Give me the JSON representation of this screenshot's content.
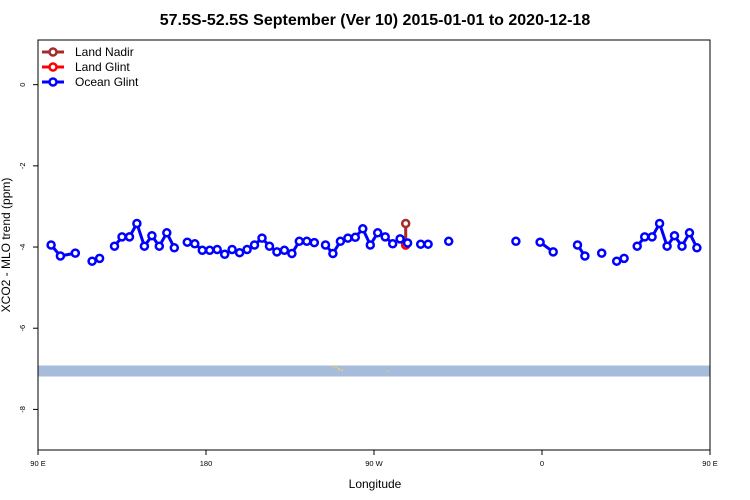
{
  "chart_data": {
    "type": "line",
    "title": "57.5S-52.5S September (Ver 10)   2015-01-01 to 2020-12-18",
    "xlabel": "Longitude",
    "ylabel": "XCO2 - MLO trend (ppm)",
    "xlim": [
      90,
      450
    ],
    "ylim": [
      -9,
      1.1
    ],
    "x_ticks": [
      {
        "value": 90,
        "label": "90 E"
      },
      {
        "value": 180,
        "label": "180"
      },
      {
        "value": 270,
        "label": "90 W"
      },
      {
        "value": 360,
        "label": "0"
      },
      {
        "value": 450,
        "label": "90 E"
      },
      {
        "value": 540,
        "label": "180"
      }
    ],
    "y_ticks": [
      {
        "value": 0,
        "label": "0"
      },
      {
        "value": -2,
        "label": "-2"
      },
      {
        "value": -4,
        "label": "-4"
      },
      {
        "value": -6,
        "label": "-6"
      },
      {
        "value": -8,
        "label": "-8"
      }
    ],
    "grid": false,
    "legend_position": "top-left",
    "series": [
      {
        "name": "Land Nadir",
        "color": "#a52a2a",
        "segments": [
          [
            [
              287,
              -3.42
            ],
            [
              287,
              -3.95
            ]
          ]
        ]
      },
      {
        "name": "Land Glint",
        "color": "#ff0000",
        "segments": [
          [
            [
              287,
              -3.95
            ]
          ]
        ]
      },
      {
        "name": "Ocean Glint",
        "color": "#0000ff",
        "segments": [
          [
            [
              97,
              -3.95
            ],
            [
              102,
              -4.22
            ],
            [
              110,
              -4.15
            ]
          ],
          [
            [
              119,
              -4.35
            ],
            [
              123,
              -4.28
            ]
          ],
          [
            [
              131,
              -3.98
            ],
            [
              135,
              -3.75
            ],
            [
              139,
              -3.75
            ],
            [
              143,
              -3.42
            ],
            [
              147,
              -3.98
            ],
            [
              151,
              -3.72
            ],
            [
              155,
              -3.98
            ],
            [
              159,
              -3.65
            ],
            [
              163,
              -4.02
            ]
          ],
          [
            [
              170,
              -3.88
            ],
            [
              174,
              -3.92
            ],
            [
              178,
              -4.08
            ],
            [
              182,
              -4.08
            ],
            [
              186,
              -4.06
            ],
            [
              190,
              -4.18
            ],
            [
              194,
              -4.06
            ],
            [
              198,
              -4.14
            ],
            [
              202,
              -4.06
            ],
            [
              206,
              -3.95
            ],
            [
              210,
              -3.78
            ],
            [
              214,
              -3.98
            ],
            [
              218,
              -4.12
            ],
            [
              222,
              -4.08
            ],
            [
              226,
              -4.16
            ],
            [
              230,
              -3.86
            ],
            [
              234,
              -3.86
            ],
            [
              238,
              -3.89
            ]
          ],
          [
            [
              244,
              -3.95
            ],
            [
              248,
              -4.16
            ],
            [
              252,
              -3.86
            ],
            [
              256,
              -3.78
            ],
            [
              260,
              -3.76
            ],
            [
              264,
              -3.55
            ],
            [
              268,
              -3.95
            ],
            [
              272,
              -3.65
            ],
            [
              276,
              -3.75
            ],
            [
              280,
              -3.92
            ],
            [
              284,
              -3.8
            ],
            [
              288,
              -3.9
            ]
          ],
          [
            [
              295,
              -3.93
            ],
            [
              299,
              -3.93
            ]
          ],
          [
            [
              310,
              -3.86
            ]
          ],
          [
            [
              346,
              -3.86
            ]
          ],
          [
            [
              359,
              -3.88
            ],
            [
              366,
              -4.12
            ]
          ],
          [
            [
              379,
              -3.95
            ],
            [
              383,
              -4.22
            ]
          ],
          [
            [
              392,
              -4.15
            ]
          ],
          [
            [
              400,
              -4.35
            ],
            [
              404,
              -4.28
            ]
          ],
          [
            [
              411,
              -3.98
            ],
            [
              415,
              -3.75
            ],
            [
              419,
              -3.75
            ],
            [
              423,
              -3.42
            ],
            [
              427,
              -3.98
            ],
            [
              431,
              -3.72
            ],
            [
              435,
              -3.98
            ],
            [
              439,
              -3.65
            ],
            [
              443,
              -4.02
            ]
          ]
        ]
      }
    ]
  }
}
